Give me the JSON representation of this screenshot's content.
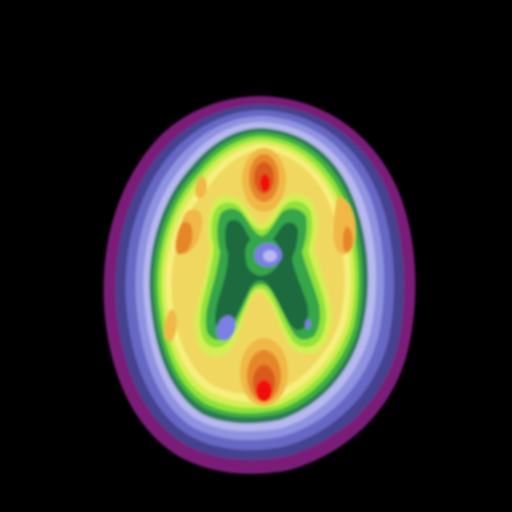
{
  "image": {
    "subject": "brain-scan-axial-slice",
    "background_color": "#000000",
    "palette": {
      "outer_rim": "#7a1a78",
      "band_dark_purple": "#44428f",
      "band_mid_purple": "#6667c4",
      "band_light_purple": "#8f92e0",
      "band_lavender": "#b6b8ef",
      "band_teal": "#2c7d52",
      "band_green": "#3fb13f",
      "band_bright_green": "#8fe33a",
      "band_yellow_green": "#d6ee55",
      "band_pale_yellow": "#f6ef7d",
      "band_yellow": "#f0d860",
      "band_light_orange": "#f0b846",
      "band_orange": "#e6862c",
      "band_dark_orange": "#d95a1f",
      "hotspot_red": "#f20d0d",
      "core_dark_green": "#1f6b3c",
      "core_green": "#36a64a",
      "ventricle_blue": "#7c7fe4"
    }
  }
}
